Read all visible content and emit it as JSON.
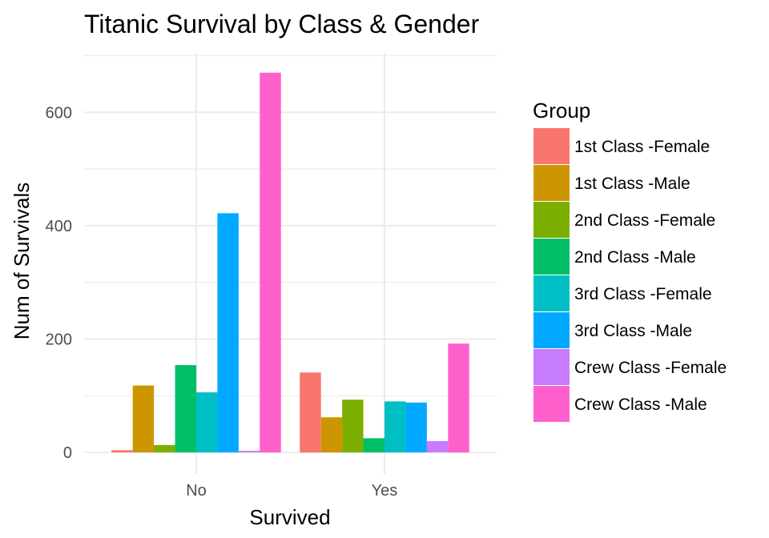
{
  "chart_data": {
    "type": "bar",
    "title": "Titanic Survival by Class & Gender",
    "xlabel": "Survived",
    "ylabel": "Num of Survivals",
    "categories": [
      "No",
      "Yes"
    ],
    "ylim": [
      -38,
      705
    ],
    "yticks": [
      0,
      200,
      400,
      600
    ],
    "grid": true,
    "legend": {
      "title": "Group",
      "placement": "right"
    },
    "series": [
      {
        "name": "1st Class -Female",
        "color": "#F8766D",
        "values": [
          4,
          141
        ]
      },
      {
        "name": "1st Class -Male",
        "color": "#CD9600",
        "values": [
          118,
          62
        ]
      },
      {
        "name": "2nd Class -Female",
        "color": "#7CAE00",
        "values": [
          13,
          93
        ]
      },
      {
        "name": "2nd Class -Male",
        "color": "#00BE67",
        "values": [
          154,
          25
        ]
      },
      {
        "name": "3rd Class -Female",
        "color": "#00BFC4",
        "values": [
          106,
          90
        ]
      },
      {
        "name": "3rd Class -Male",
        "color": "#00A9FF",
        "values": [
          422,
          88
        ]
      },
      {
        "name": "Crew Class -Female",
        "color": "#C77CFF",
        "values": [
          3,
          20
        ]
      },
      {
        "name": "Crew Class -Male",
        "color": "#FF61CC",
        "values": [
          670,
          192
        ]
      }
    ]
  }
}
